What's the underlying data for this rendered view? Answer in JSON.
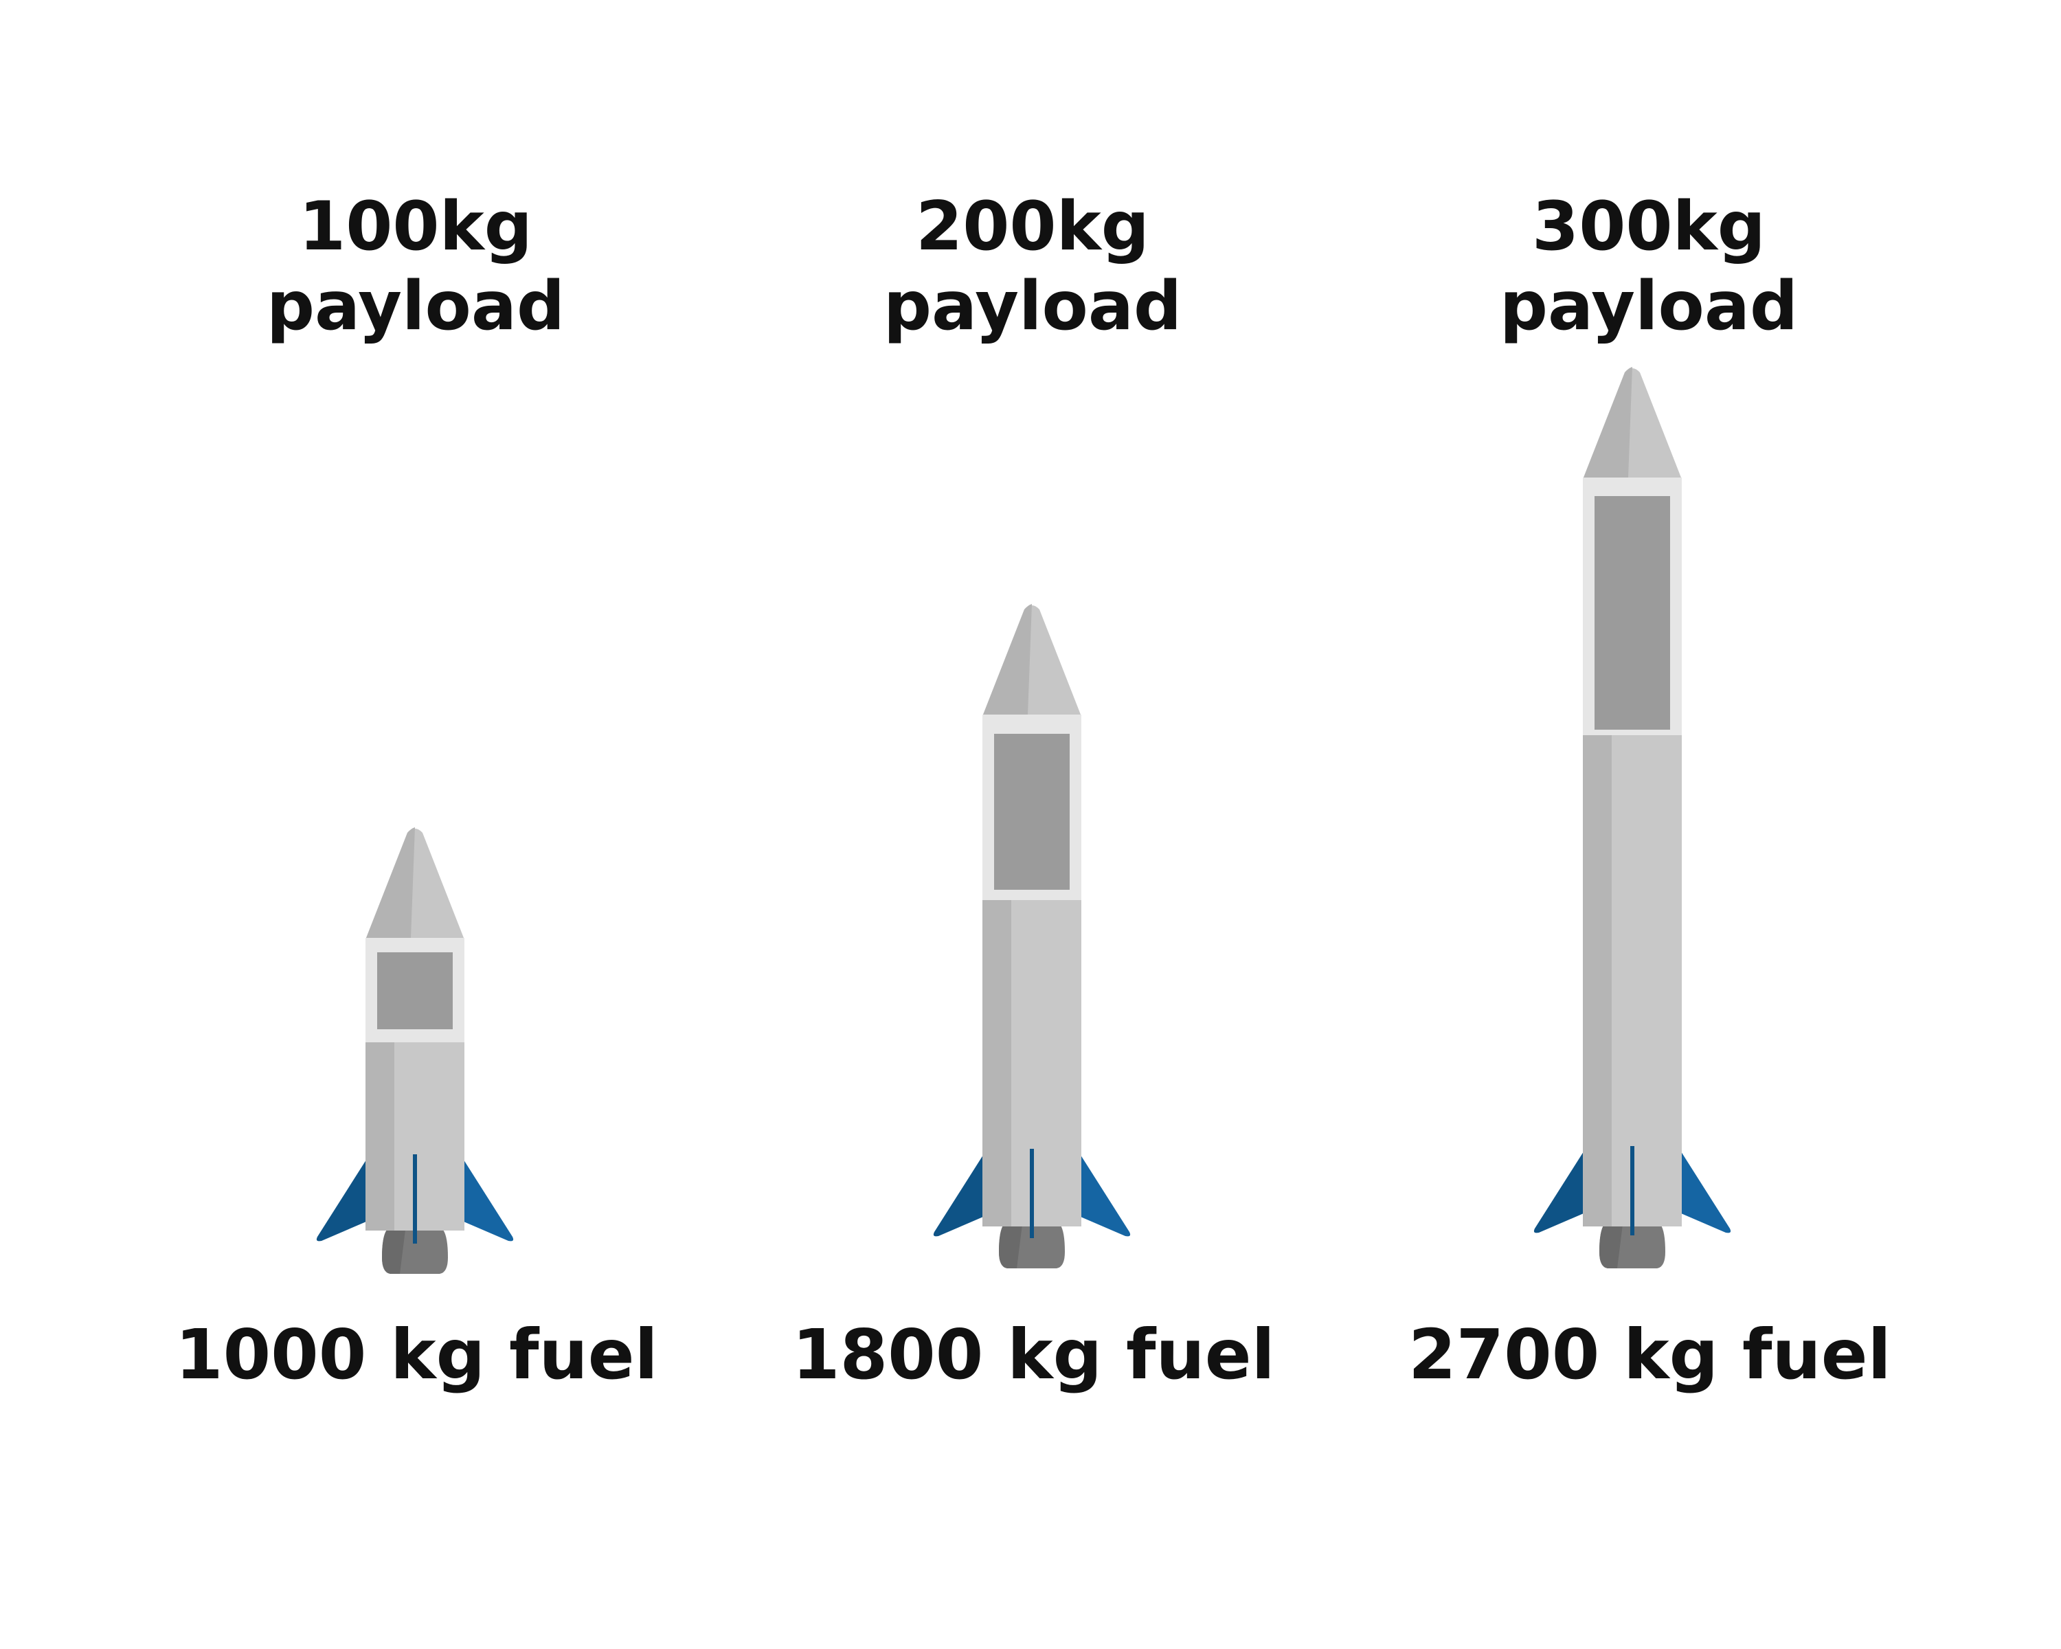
{
  "rockets": [
    {
      "payload_line1": "100kg",
      "payload_line2": "payload",
      "fuel_label": "1000 kg fuel"
    },
    {
      "payload_line1": "200kg",
      "payload_line2": "payload",
      "fuel_label": "1800 kg fuel"
    },
    {
      "payload_line1": "300kg",
      "payload_line2": "payload",
      "fuel_label": "2700 kg fuel"
    }
  ],
  "colors": {
    "body": "#c8c8c8",
    "body_shadow": "#b5b5b5",
    "cone": "#c6c6c6",
    "cone_shadow": "#b3b3b3",
    "payload_frame": "#e6e6e6",
    "payload_window": "#9b9b9b",
    "fin_dark": "#0e5386",
    "fin_light": "#1565a3",
    "nozzle": "#7a7a7a",
    "nozzle_shadow": "#6a6a6a",
    "stripe": "#0e5386"
  }
}
